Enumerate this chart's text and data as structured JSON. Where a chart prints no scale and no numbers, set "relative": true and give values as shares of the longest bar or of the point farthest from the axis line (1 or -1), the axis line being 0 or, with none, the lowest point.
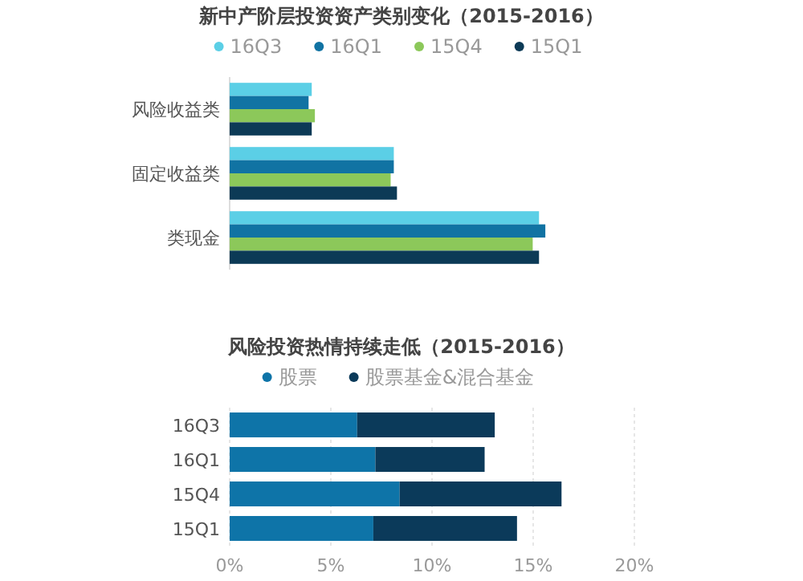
{
  "chart_data": [
    {
      "type": "bar",
      "orientation": "horizontal",
      "relative": true,
      "title": "新中产阶层投资资产类别变化（2015-2016）",
      "legend": "top",
      "categories": [
        "风险收益类",
        "固定收益类",
        "类现金"
      ],
      "series": [
        {
          "name": "16Q3",
          "color": "#5bcfe6",
          "values": [
            0.26,
            0.52,
            0.98
          ]
        },
        {
          "name": "16Q1",
          "color": "#1173a3",
          "values": [
            0.25,
            0.52,
            1
          ]
        },
        {
          "name": "15Q4",
          "color": "#8cc85a",
          "values": [
            0.27,
            0.51,
            0.96
          ]
        },
        {
          "name": "15Q1",
          "color": "#0c3a56",
          "values": [
            0.26,
            0.53,
            0.98
          ]
        }
      ]
    },
    {
      "type": "bar",
      "orientation": "horizontal",
      "stacked": true,
      "title": "风险投资热情持续走低（2015-2016）",
      "legend": "top",
      "grid": "x",
      "categories": [
        "16Q3",
        "16Q1",
        "15Q4",
        "15Q1"
      ],
      "xlim": [
        0,
        20
      ],
      "xticks": [
        {
          "value": 0,
          "label": "0%"
        },
        {
          "value": 5,
          "label": "5%"
        },
        {
          "value": 10,
          "label": "10%"
        },
        {
          "value": 15,
          "label": "15%"
        },
        {
          "value": 20,
          "label": "20%"
        }
      ],
      "series": [
        {
          "name": "股票",
          "color": "#0e74a8",
          "values": [
            6.3,
            7.2,
            8.4,
            7.1
          ]
        },
        {
          "name": "股票基金&混合基金",
          "color": "#0b3a5a",
          "values": [
            6.8,
            5.4,
            8.0,
            7.1
          ]
        }
      ]
    }
  ]
}
